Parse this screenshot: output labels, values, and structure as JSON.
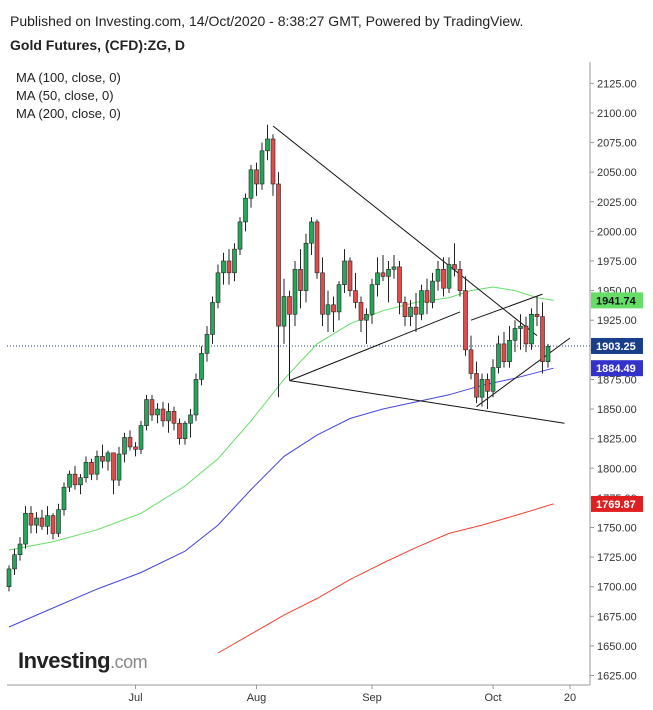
{
  "header": {
    "published": "Published on Investing.com, 14/Oct/2020 - 8:38:27 GMT, Powered by TradingView.",
    "symbol": "Gold Futures, (CFD):ZG, D"
  },
  "legend": {
    "ma100": "MA (100, close, 0)",
    "ma50": "MA (50, close, 0)",
    "ma200": "MA (200, close, 0)"
  },
  "logo": {
    "main": "Investing",
    "suffix": ".com"
  },
  "colors": {
    "up": "#26a65b",
    "down": "#e04b4b",
    "ma50": "#66dd66",
    "ma100": "#4444dd",
    "ma200": "#ee4433",
    "trendline": "#111111",
    "last_price_line": "#1a3f8a"
  },
  "chart_data": {
    "type": "candlestick",
    "title": "Gold Futures, (CFD):ZG, D",
    "ylim": [
      1617,
      2143
    ],
    "y_ticks": [
      "2125.00",
      "2100.00",
      "2075.00",
      "2050.00",
      "2025.00",
      "2000.00",
      "1975.00",
      "1950.00",
      "1925.00",
      "1900.00",
      "1875.00",
      "1850.00",
      "1825.00",
      "1800.00",
      "1775.00",
      "1750.00",
      "1725.00",
      "1700.00",
      "1675.00",
      "1650.00",
      "1625.00"
    ],
    "x_ticks": [
      {
        "label": "Jul",
        "index": 23
      },
      {
        "label": "Aug",
        "index": 45
      },
      {
        "label": "Sep",
        "index": 66
      },
      {
        "label": "Oct",
        "index": 88
      },
      {
        "label": "20",
        "index": 102
      }
    ],
    "price_badges": [
      {
        "label": "1941.74",
        "value": 1941.74,
        "series": "MA (50, close, 0)",
        "color": "#66dd66",
        "text_color": "#111111"
      },
      {
        "label": "1903.25",
        "value": 1903.25,
        "series": "last close",
        "color": "#1a3f8a",
        "text_color": "#ffffff"
      },
      {
        "label": "1884.49",
        "value": 1884.49,
        "series": "MA (100, close, 0)",
        "color": "#3333cc",
        "text_color": "#ffffff"
      },
      {
        "label": "1769.87",
        "value": 1769.87,
        "series": "MA (200, close, 0)",
        "color": "#e02020",
        "text_color": "#ffffff"
      }
    ],
    "last_price": 1903.25,
    "ohlc": [
      [
        1700,
        1718,
        1696,
        1715
      ],
      [
        1715,
        1732,
        1710,
        1727
      ],
      [
        1727,
        1742,
        1722,
        1736
      ],
      [
        1736,
        1768,
        1732,
        1762
      ],
      [
        1762,
        1768,
        1745,
        1752
      ],
      [
        1752,
        1763,
        1745,
        1758
      ],
      [
        1758,
        1765,
        1748,
        1751
      ],
      [
        1751,
        1768,
        1744,
        1760
      ],
      [
        1760,
        1762,
        1740,
        1745
      ],
      [
        1745,
        1770,
        1742,
        1765
      ],
      [
        1765,
        1788,
        1760,
        1784
      ],
      [
        1784,
        1798,
        1780,
        1795
      ],
      [
        1795,
        1802,
        1782,
        1786
      ],
      [
        1786,
        1795,
        1778,
        1792
      ],
      [
        1792,
        1810,
        1788,
        1805
      ],
      [
        1805,
        1808,
        1790,
        1795
      ],
      [
        1795,
        1815,
        1790,
        1810
      ],
      [
        1810,
        1820,
        1800,
        1806
      ],
      [
        1806,
        1815,
        1798,
        1813
      ],
      [
        1813,
        1812,
        1778,
        1790
      ],
      [
        1790,
        1818,
        1785,
        1812
      ],
      [
        1812,
        1830,
        1805,
        1826
      ],
      [
        1826,
        1832,
        1815,
        1818
      ],
      [
        1818,
        1822,
        1810,
        1816
      ],
      [
        1816,
        1840,
        1812,
        1836
      ],
      [
        1836,
        1862,
        1832,
        1858
      ],
      [
        1858,
        1862,
        1840,
        1845
      ],
      [
        1845,
        1855,
        1838,
        1850
      ],
      [
        1850,
        1856,
        1835,
        1840
      ],
      [
        1840,
        1855,
        1830,
        1848
      ],
      [
        1848,
        1852,
        1832,
        1838
      ],
      [
        1838,
        1842,
        1820,
        1825
      ],
      [
        1825,
        1840,
        1820,
        1838
      ],
      [
        1838,
        1850,
        1826,
        1845
      ],
      [
        1845,
        1880,
        1840,
        1875
      ],
      [
        1875,
        1903,
        1870,
        1897
      ],
      [
        1897,
        1920,
        1890,
        1913
      ],
      [
        1913,
        1945,
        1905,
        1940
      ],
      [
        1940,
        1972,
        1935,
        1965
      ],
      [
        1965,
        1982,
        1955,
        1975
      ],
      [
        1975,
        1985,
        1955,
        1965
      ],
      [
        1965,
        1990,
        1958,
        1985
      ],
      [
        1985,
        2012,
        1980,
        2008
      ],
      [
        2008,
        2032,
        2000,
        2028
      ],
      [
        2028,
        2056,
        2020,
        2052
      ],
      [
        2052,
        2058,
        2030,
        2040
      ],
      [
        2040,
        2075,
        2035,
        2068
      ],
      [
        2068,
        2090,
        2060,
        2078
      ],
      [
        2078,
        2082,
        2030,
        2040
      ],
      [
        2040,
        2050,
        1860,
        1920
      ],
      [
        1920,
        1960,
        1905,
        1945
      ],
      [
        1945,
        1950,
        1900,
        1930
      ],
      [
        1930,
        1975,
        1920,
        1968
      ],
      [
        1968,
        1985,
        1935,
        1950
      ],
      [
        1950,
        1998,
        1940,
        1990
      ],
      [
        1990,
        2012,
        1980,
        2008
      ],
      [
        2008,
        2010,
        1960,
        1965
      ],
      [
        1965,
        1978,
        1920,
        1930
      ],
      [
        1930,
        1950,
        1915,
        1938
      ],
      [
        1938,
        1945,
        1915,
        1932
      ],
      [
        1932,
        1958,
        1925,
        1955
      ],
      [
        1955,
        1985,
        1948,
        1975
      ],
      [
        1975,
        1978,
        1945,
        1950
      ],
      [
        1950,
        1965,
        1935,
        1940
      ],
      [
        1940,
        1945,
        1915,
        1925
      ],
      [
        1925,
        1935,
        1905,
        1930
      ],
      [
        1930,
        1960,
        1922,
        1955
      ],
      [
        1955,
        1978,
        1945,
        1965
      ],
      [
        1965,
        1980,
        1958,
        1962
      ],
      [
        1962,
        1975,
        1940,
        1968
      ],
      [
        1968,
        1980,
        1960,
        1970
      ],
      [
        1970,
        1975,
        1930,
        1940
      ],
      [
        1940,
        1945,
        1920,
        1928
      ],
      [
        1928,
        1942,
        1920,
        1936
      ],
      [
        1936,
        1948,
        1915,
        1930
      ],
      [
        1930,
        1955,
        1925,
        1950
      ],
      [
        1950,
        1960,
        1930,
        1940
      ],
      [
        1940,
        1965,
        1935,
        1958
      ],
      [
        1958,
        1975,
        1950,
        1968
      ],
      [
        1968,
        1978,
        1945,
        1952
      ],
      [
        1952,
        1978,
        1948,
        1972
      ],
      [
        1972,
        1990,
        1962,
        1968
      ],
      [
        1968,
        1975,
        1945,
        1950
      ],
      [
        1950,
        1962,
        1895,
        1900
      ],
      [
        1900,
        1912,
        1875,
        1880
      ],
      [
        1880,
        1890,
        1855,
        1860
      ],
      [
        1860,
        1880,
        1852,
        1875
      ],
      [
        1875,
        1880,
        1850,
        1865
      ],
      [
        1865,
        1892,
        1860,
        1885
      ],
      [
        1885,
        1912,
        1880,
        1905
      ],
      [
        1905,
        1915,
        1885,
        1890
      ],
      [
        1890,
        1920,
        1885,
        1908
      ],
      [
        1908,
        1925,
        1898,
        1918
      ],
      [
        1918,
        1930,
        1900,
        1920
      ],
      [
        1920,
        1928,
        1898,
        1905
      ],
      [
        1905,
        1935,
        1900,
        1930
      ],
      [
        1930,
        1945,
        1920,
        1928
      ],
      [
        1928,
        1940,
        1880,
        1890
      ],
      [
        1890,
        1905,
        1885,
        1903
      ]
    ],
    "ma50": [
      [
        0,
        1731
      ],
      [
        8,
        1738
      ],
      [
        16,
        1748
      ],
      [
        24,
        1762
      ],
      [
        32,
        1785
      ],
      [
        38,
        1808
      ],
      [
        44,
        1840
      ],
      [
        50,
        1875
      ],
      [
        56,
        1905
      ],
      [
        62,
        1922
      ],
      [
        68,
        1933
      ],
      [
        74,
        1940
      ],
      [
        80,
        1944
      ],
      [
        84,
        1950
      ],
      [
        88,
        1953
      ],
      [
        92,
        1950
      ],
      [
        96,
        1944
      ],
      [
        99,
        1941.74
      ]
    ],
    "ma100": [
      [
        0,
        1666
      ],
      [
        8,
        1682
      ],
      [
        16,
        1698
      ],
      [
        24,
        1712
      ],
      [
        32,
        1730
      ],
      [
        38,
        1752
      ],
      [
        44,
        1782
      ],
      [
        50,
        1810
      ],
      [
        56,
        1828
      ],
      [
        62,
        1842
      ],
      [
        68,
        1850
      ],
      [
        74,
        1856
      ],
      [
        80,
        1862
      ],
      [
        86,
        1870
      ],
      [
        92,
        1876
      ],
      [
        99,
        1884.49
      ]
    ],
    "ma200": [
      [
        38,
        1644
      ],
      [
        44,
        1660
      ],
      [
        50,
        1676
      ],
      [
        56,
        1690
      ],
      [
        62,
        1706
      ],
      [
        68,
        1720
      ],
      [
        74,
        1733
      ],
      [
        80,
        1745
      ],
      [
        86,
        1752
      ],
      [
        92,
        1760
      ],
      [
        99,
        1769.87
      ]
    ],
    "trendlines": [
      [
        [
          48,
          2089
        ],
        [
          96,
          1912
        ]
      ],
      [
        [
          51,
          1910
        ],
        [
          51,
          1874
        ]
      ],
      [
        [
          51,
          1874
        ],
        [
          82,
          1932
        ]
      ],
      [
        [
          51,
          1874
        ],
        [
          101,
          1838
        ]
      ],
      [
        [
          84,
          1925
        ],
        [
          97,
          1947
        ]
      ],
      [
        [
          85,
          1852
        ],
        [
          102,
          1910
        ]
      ]
    ]
  }
}
